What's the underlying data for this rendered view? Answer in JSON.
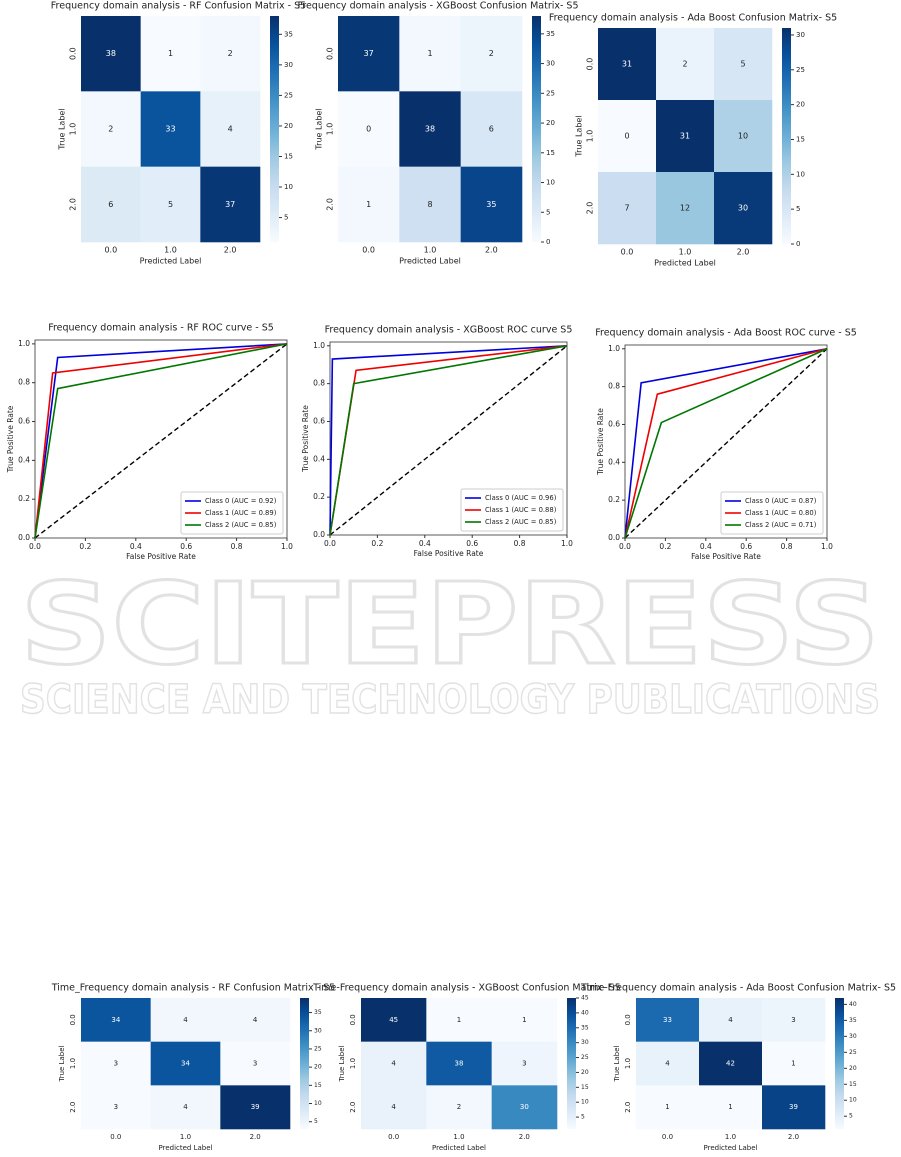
{
  "chart_data": [
    {
      "type": "heatmap",
      "title": "Frequency domain analysis - RF Confusion Matrix - S5",
      "xlabel": "Predicted Label",
      "ylabel": "True Label",
      "categories": [
        "0.0",
        "1.0",
        "2.0"
      ],
      "row_categories": [
        "0.0",
        "1.0",
        "2.0"
      ],
      "values": [
        [
          38,
          1,
          2
        ],
        [
          2,
          33,
          4
        ],
        [
          6,
          5,
          37
        ]
      ],
      "clim": [
        1,
        38
      ],
      "cticks": [
        5,
        10,
        15,
        20,
        25,
        30,
        35
      ],
      "colormap": "Blues"
    },
    {
      "type": "heatmap",
      "title": "Frequency domain analysis - XGBoost Confusion Matrix- S5",
      "xlabel": "Predicted Label",
      "ylabel": "True Label",
      "categories": [
        "0.0",
        "1.0",
        "2.0"
      ],
      "row_categories": [
        "0.0",
        "1.0",
        "2.0"
      ],
      "values": [
        [
          37,
          1,
          2
        ],
        [
          0,
          38,
          6
        ],
        [
          1,
          8,
          35
        ]
      ],
      "clim": [
        0,
        38
      ],
      "cticks": [
        0,
        5,
        10,
        15,
        20,
        25,
        30,
        35
      ],
      "colormap": "Blues"
    },
    {
      "type": "heatmap",
      "title": "Frequency domain analysis - Ada Boost Confusion Matrix- S5",
      "xlabel": "Predicted Label",
      "ylabel": "True Label",
      "categories": [
        "0.0",
        "1.0",
        "2.0"
      ],
      "row_categories": [
        "0.0",
        "1.0",
        "2.0"
      ],
      "values": [
        [
          31,
          2,
          5
        ],
        [
          0,
          31,
          10
        ],
        [
          7,
          12,
          30
        ]
      ],
      "clim": [
        0,
        31
      ],
      "cticks": [
        0,
        5,
        10,
        15,
        20,
        25,
        30
      ],
      "colormap": "Blues"
    },
    {
      "type": "line",
      "title": "Frequency domain analysis - RF ROC curve - S5",
      "xlabel": "False Positive Rate",
      "ylabel": "True Positive Rate",
      "xlim": [
        0,
        1
      ],
      "ylim": [
        0,
        1.02
      ],
      "xticks": [
        {
          "value": 0,
          "label": "0.0"
        },
        0.2,
        0.4,
        0.6,
        0.8,
        {
          "value": 1,
          "label": "1.0"
        }
      ],
      "yticks": [
        {
          "value": 0,
          "label": "0.0"
        },
        0.2,
        0.4,
        0.6,
        0.8,
        {
          "value": 1,
          "label": "1.0"
        }
      ],
      "legend": "lower right",
      "series": [
        {
          "name": "Class 0 (AUC = 0.92)",
          "color": "#0000dd",
          "x": [
            0,
            0.09,
            1
          ],
          "values": [
            0,
            0.93,
            1
          ]
        },
        {
          "name": "Class 1 (AUC = 0.89)",
          "color": "#ee0000",
          "x": [
            0,
            0.07,
            1
          ],
          "values": [
            0,
            0.85,
            1
          ]
        },
        {
          "name": "Class 2 (AUC = 0.85)",
          "color": "#007700",
          "x": [
            0,
            0.09,
            1
          ],
          "values": [
            0,
            0.77,
            1
          ]
        }
      ]
    },
    {
      "type": "line",
      "title": "Frequency domain analysis - XGBoost ROC curve S5",
      "xlabel": "False Positive Rate",
      "ylabel": "True Positive Rate",
      "xlim": [
        0,
        1
      ],
      "ylim": [
        0,
        1.02
      ],
      "xticks": [
        {
          "value": 0,
          "label": "0.0"
        },
        0.2,
        0.4,
        0.6,
        0.8,
        {
          "value": 1,
          "label": "1.0"
        }
      ],
      "yticks": [
        {
          "value": 0,
          "label": "0.0"
        },
        0.2,
        0.4,
        0.6,
        0.8,
        {
          "value": 1,
          "label": "1.0"
        }
      ],
      "legend": "lower right",
      "series": [
        {
          "name": "Class 0 (AUC = 0.96)",
          "color": "#0000dd",
          "x": [
            0,
            0.01,
            1
          ],
          "values": [
            0,
            0.93,
            1
          ]
        },
        {
          "name": "Class 1 (AUC = 0.88)",
          "color": "#ee0000",
          "x": [
            0,
            0.11,
            1
          ],
          "values": [
            0,
            0.87,
            1
          ]
        },
        {
          "name": "Class 2 (AUC = 0.85)",
          "color": "#007700",
          "x": [
            0,
            0.1,
            1
          ],
          "values": [
            0,
            0.8,
            1
          ]
        }
      ]
    },
    {
      "type": "line",
      "title": "Frequency domain analysis - Ada Boost ROC curve - S5",
      "xlabel": "False Positive Rate",
      "ylabel": "True Positive Rate",
      "xlim": [
        0,
        1
      ],
      "ylim": [
        0,
        1.02
      ],
      "xticks": [
        {
          "value": 0,
          "label": "0.0"
        },
        0.2,
        0.4,
        0.6,
        0.8,
        {
          "value": 1,
          "label": "1.0"
        }
      ],
      "yticks": [
        {
          "value": 0,
          "label": "0.0"
        },
        0.2,
        0.4,
        0.6,
        0.8,
        {
          "value": 1,
          "label": "1.0"
        }
      ],
      "legend": "lower right",
      "series": [
        {
          "name": "Class 0 (AUC = 0.87)",
          "color": "#0000dd",
          "x": [
            0,
            0.08,
            1
          ],
          "values": [
            0,
            0.82,
            1
          ]
        },
        {
          "name": "Class 1 (AUC = 0.80)",
          "color": "#ee0000",
          "x": [
            0,
            0.16,
            1
          ],
          "values": [
            0,
            0.76,
            1
          ]
        },
        {
          "name": "Class 2 (AUC = 0.71)",
          "color": "#007700",
          "x": [
            0,
            0.18,
            1
          ],
          "values": [
            0,
            0.61,
            1
          ]
        }
      ]
    },
    {
      "type": "heatmap",
      "title": "Time_Frequency domain analysis - RF Confusion Matrix - S5",
      "xlabel": "Predicted Label",
      "ylabel": "True Label",
      "categories": [
        "0.0",
        "1.0",
        "2.0"
      ],
      "row_categories": [
        "0.0",
        "1.0",
        "2.0"
      ],
      "values": [
        [
          34,
          4,
          4
        ],
        [
          3,
          34,
          3
        ],
        [
          3,
          4,
          39
        ]
      ],
      "clim": [
        3,
        39
      ],
      "cticks": [
        5,
        10,
        15,
        20,
        25,
        30,
        35
      ],
      "colormap": "Blues"
    },
    {
      "type": "heatmap",
      "title": "Time-Frequency domain analysis - XGBoost Confusion Matrix- S5",
      "xlabel": "Predicted Label",
      "ylabel": "True Label",
      "categories": [
        "0.0",
        "1.0",
        "2.0"
      ],
      "row_categories": [
        "0.0",
        "1.0",
        "2.0"
      ],
      "values": [
        [
          45,
          1,
          1
        ],
        [
          4,
          38,
          3
        ],
        [
          4,
          2,
          30
        ]
      ],
      "clim": [
        1,
        45
      ],
      "cticks": [
        5,
        10,
        15,
        20,
        25,
        30,
        35,
        40,
        45
      ],
      "colormap": "Blues"
    },
    {
      "type": "heatmap",
      "title": "Time-Frequency domain analysis - Ada Boost Confusion Matrix- S5",
      "xlabel": "Predicted Label",
      "ylabel": "True Label",
      "categories": [
        "0.0",
        "1.0",
        "2.0"
      ],
      "row_categories": [
        "0.0",
        "1.0",
        "2.0"
      ],
      "values": [
        [
          33,
          4,
          3
        ],
        [
          4,
          42,
          1
        ],
        [
          1,
          1,
          39
        ]
      ],
      "clim": [
        1,
        42
      ],
      "cticks": [
        5,
        10,
        15,
        20,
        25,
        30,
        35,
        40
      ],
      "colormap": "Blues"
    }
  ],
  "watermark": {
    "title": "SCITEPRESS",
    "subtitle": "SCIENCE AND TECHNOLOGY PUBLICATIONS"
  }
}
